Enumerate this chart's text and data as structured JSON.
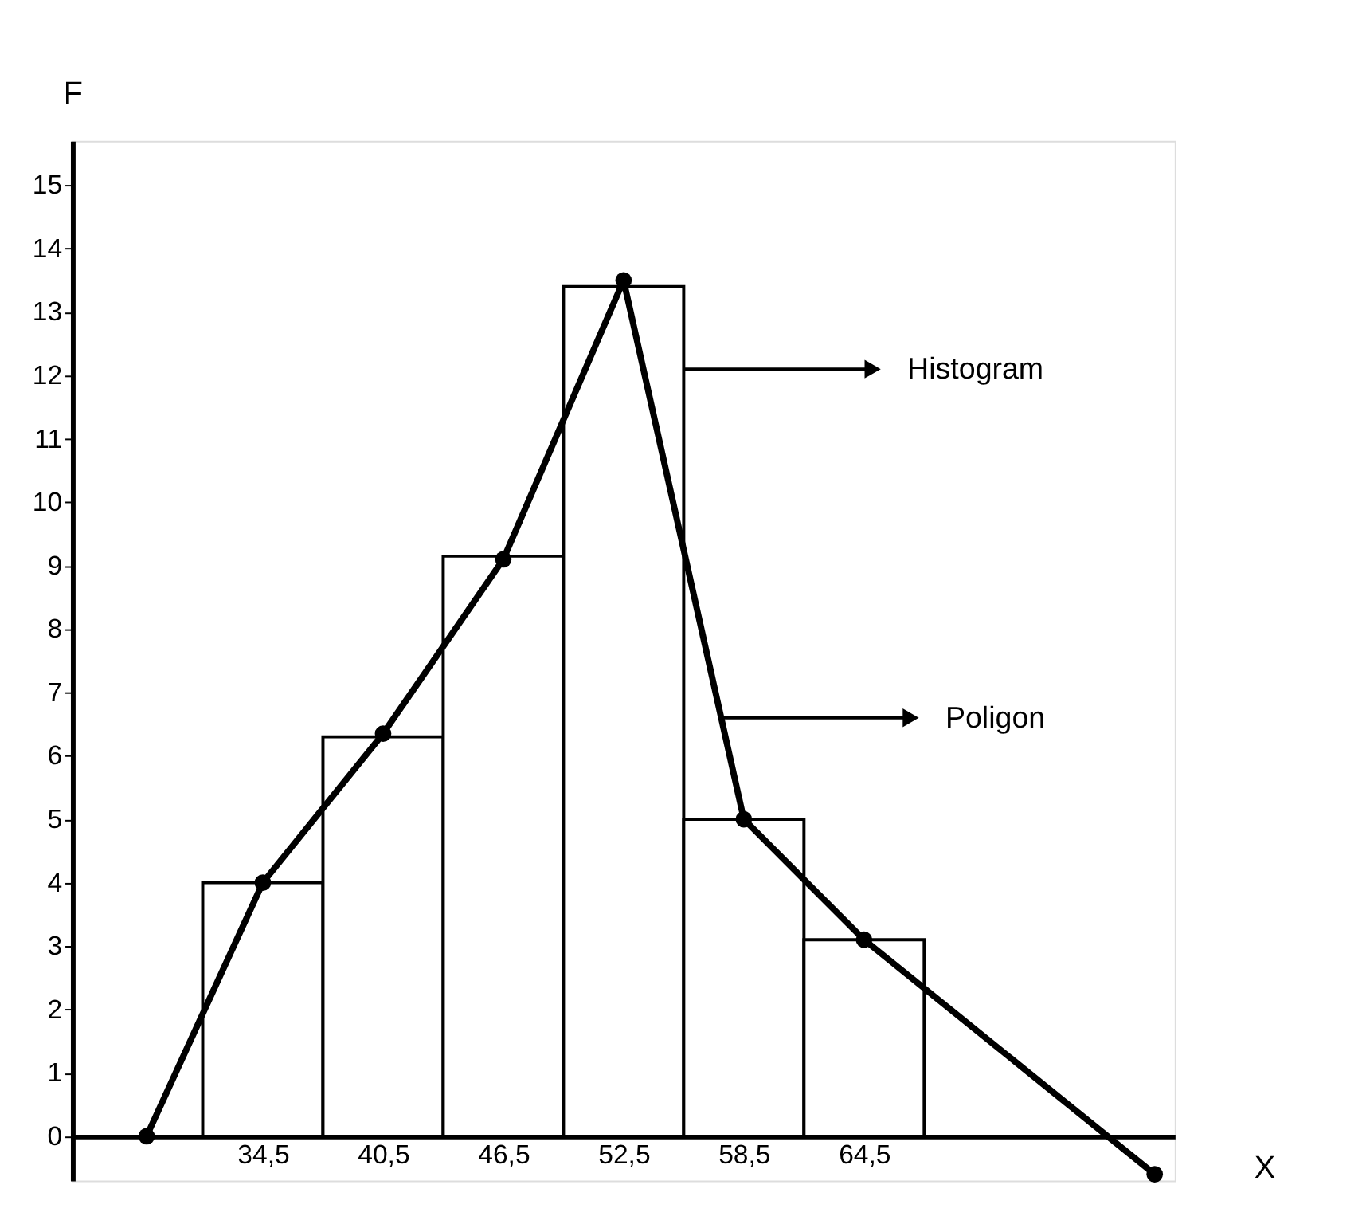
{
  "chart_data": {
    "type": "histogram",
    "xlabel": "X",
    "ylabel": "F",
    "bins": [
      31.5,
      37.5,
      43.5,
      49.5,
      55.5,
      61.5,
      67.5
    ],
    "series": [
      {
        "color": "#ffffff",
        "values": [
          4,
          6.3,
          9.15,
          13.4,
          5,
          3.1
        ]
      },
      {
        "type": "line",
        "color": "#000000",
        "marker": "circle",
        "line_style": "solid",
        "x": [
          28.7,
          34.5,
          40.5,
          46.5,
          52.5,
          58.5,
          64.5,
          79
        ],
        "values": [
          0,
          4,
          6.35,
          9.1,
          13.5,
          5,
          3.1,
          -0.6
        ]
      }
    ],
    "xlim": [
      25,
      80
    ],
    "ylim": [
      -0.7,
      15.7
    ],
    "xticks": [
      {
        "value": 34.5,
        "label": "34,5"
      },
      {
        "value": 40.5,
        "label": "40,5"
      },
      {
        "value": 46.5,
        "label": "46,5"
      },
      {
        "value": 52.5,
        "label": "52,5"
      },
      {
        "value": 58.5,
        "label": "58,5"
      },
      {
        "value": 64.5,
        "label": "64,5"
      }
    ],
    "yticks": [
      0,
      1,
      2,
      3,
      4,
      5,
      6,
      7,
      8,
      9,
      10,
      11,
      12,
      13,
      14,
      15
    ],
    "grid": false,
    "annotations": [
      {
        "text": "Histogram",
        "x": 55.5,
        "y": 12.1
      },
      {
        "text": "Poligon",
        "x": 57.4,
        "y": 6.6
      }
    ]
  }
}
